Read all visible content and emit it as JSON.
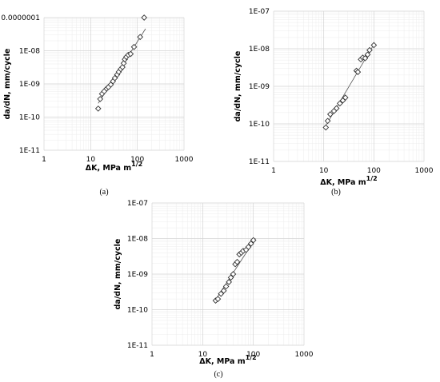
{
  "chart_data": [
    {
      "type": "scatter",
      "panel_label": "(a)",
      "xlabel": "ΔK, MPa m",
      "xlabel_sup": "1/2",
      "ylabel": "da/dN, mm/cycle",
      "x_scale": "log",
      "y_scale": "log",
      "xlim": [
        1,
        1000
      ],
      "ylim": [
        1e-11,
        1e-07
      ],
      "x_ticks": [
        "1",
        "10",
        "100",
        "1000"
      ],
      "y_ticks": [
        "1E-11",
        "1E-10",
        "1E-09",
        "1E-08",
        "0.0000001"
      ],
      "grid": true,
      "x": [
        14.5,
        16,
        17.5,
        19.5,
        22,
        24,
        27,
        30,
        33,
        37,
        40,
        44,
        48,
        51,
        54,
        58,
        64,
        72,
        85,
        115,
        140
      ],
      "y": [
        1.8e-10,
        3.5e-10,
        5e-10,
        6e-10,
        7.2e-10,
        8e-10,
        9.5e-10,
        1.2e-09,
        1.5e-09,
        1.9e-09,
        2.3e-09,
        2.8e-09,
        3.2e-09,
        4.2e-09,
        5.5e-09,
        6.5e-09,
        7.5e-09,
        8e-09,
        1.3e-08,
        2.6e-08,
        1e-07
      ],
      "fit": {
        "x": [
          14.5,
          150
        ],
        "y": [
          2.6e-10,
          4.6e-08
        ]
      }
    },
    {
      "type": "scatter",
      "panel_label": "(b)",
      "xlabel": "ΔK, MPa m",
      "xlabel_sup": "1/2",
      "ylabel": "da/dN, mm/cycle",
      "x_scale": "log",
      "y_scale": "log",
      "xlim": [
        1,
        1000
      ],
      "ylim": [
        1e-11,
        1e-07
      ],
      "x_ticks": [
        "1",
        "10",
        "100",
        "1000"
      ],
      "y_ticks": [
        "1E-11",
        "1E-10",
        "1E-09",
        "1E-08",
        "1E-07"
      ],
      "grid": true,
      "x": [
        11,
        12,
        13.5,
        16,
        18,
        21,
        24,
        27,
        45,
        48,
        55,
        60,
        67,
        75,
        82,
        100
      ],
      "y": [
        8e-11,
        1.2e-10,
        1.8e-10,
        2.2e-10,
        2.6e-10,
        3.5e-10,
        4.2e-10,
        5e-10,
        2.6e-09,
        2.4e-09,
        5.2e-09,
        5.8e-09,
        5.6e-09,
        7e-09,
        9.2e-09,
        1.25e-08
      ],
      "fit": {
        "x": [
          11,
          100
        ],
        "y": [
          9e-11,
          1.3e-08
        ]
      }
    },
    {
      "type": "scatter",
      "panel_label": "(c)",
      "xlabel": "ΔK, MPa m",
      "xlabel_sup": "1/2",
      "ylabel": "da/dN, mm/cycle",
      "x_scale": "log",
      "y_scale": "log",
      "xlim": [
        1,
        1000
      ],
      "ylim": [
        1e-11,
        1e-07
      ],
      "x_ticks": [
        "1",
        "10",
        "100",
        "1000"
      ],
      "y_ticks": [
        "1E-11",
        "1E-10",
        "1E-09",
        "1E-08",
        "1E-07"
      ],
      "grid": true,
      "x": [
        18,
        20,
        23,
        26,
        29,
        33,
        36,
        40,
        44,
        48,
        53,
        58,
        63,
        72,
        80,
        90,
        100
      ],
      "y": [
        1.8e-10,
        2e-10,
        2.8e-10,
        3.4e-10,
        4.5e-10,
        6e-10,
        8e-10,
        1e-09,
        1.9e-09,
        2.2e-09,
        3.6e-09,
        4e-09,
        4.5e-09,
        4.8e-09,
        5.8e-09,
        7.2e-09,
        9e-09
      ],
      "fit": {
        "x": [
          18,
          110
        ],
        "y": [
          1.9e-10,
          1e-08
        ]
      }
    }
  ]
}
